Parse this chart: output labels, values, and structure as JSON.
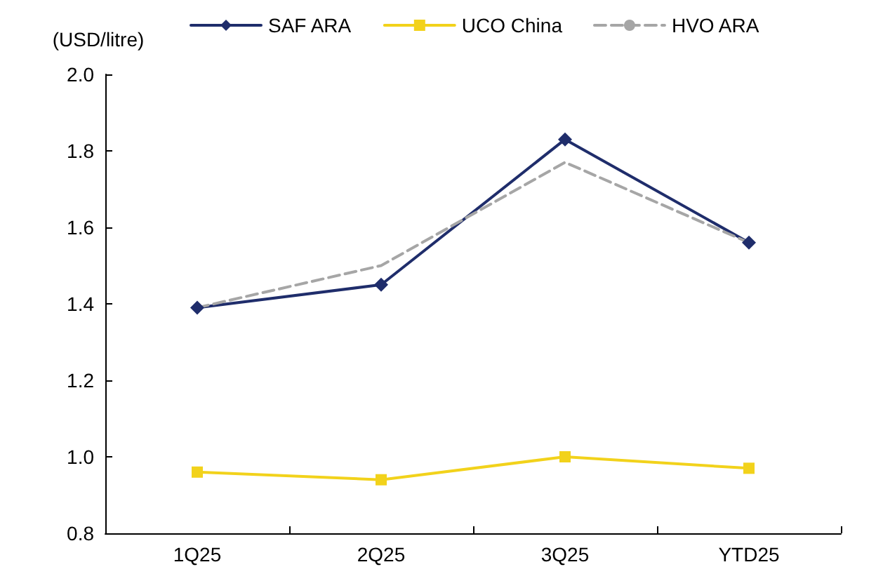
{
  "chart_data": {
    "type": "line",
    "ylabel": "(USD/litre)",
    "categories": [
      "1Q25",
      "2Q25",
      "3Q25",
      "YTD25"
    ],
    "series": [
      {
        "name": "SAF ARA",
        "color": "#1f2d6b",
        "values": [
          1.39,
          1.45,
          1.83,
          1.56
        ],
        "marker": "diamond",
        "line_style": "solid"
      },
      {
        "name": "UCO China",
        "color": "#f2d21b",
        "values": [
          0.96,
          0.94,
          1.0,
          0.97
        ],
        "marker": "square",
        "line_style": "solid"
      },
      {
        "name": "HVO ARA",
        "color": "#a6a6a6",
        "values": [
          1.39,
          1.5,
          1.77,
          1.56
        ],
        "marker": "none",
        "line_style": "dashed"
      }
    ],
    "ylim": [
      0.8,
      2.0
    ],
    "yticks": [
      0.8,
      {
        "value": 1,
        "label": "1.0"
      },
      1.2,
      1.4,
      1.6,
      1.8,
      {
        "value": 2,
        "label": "2.0"
      }
    ],
    "grid": false,
    "legend": "top"
  }
}
